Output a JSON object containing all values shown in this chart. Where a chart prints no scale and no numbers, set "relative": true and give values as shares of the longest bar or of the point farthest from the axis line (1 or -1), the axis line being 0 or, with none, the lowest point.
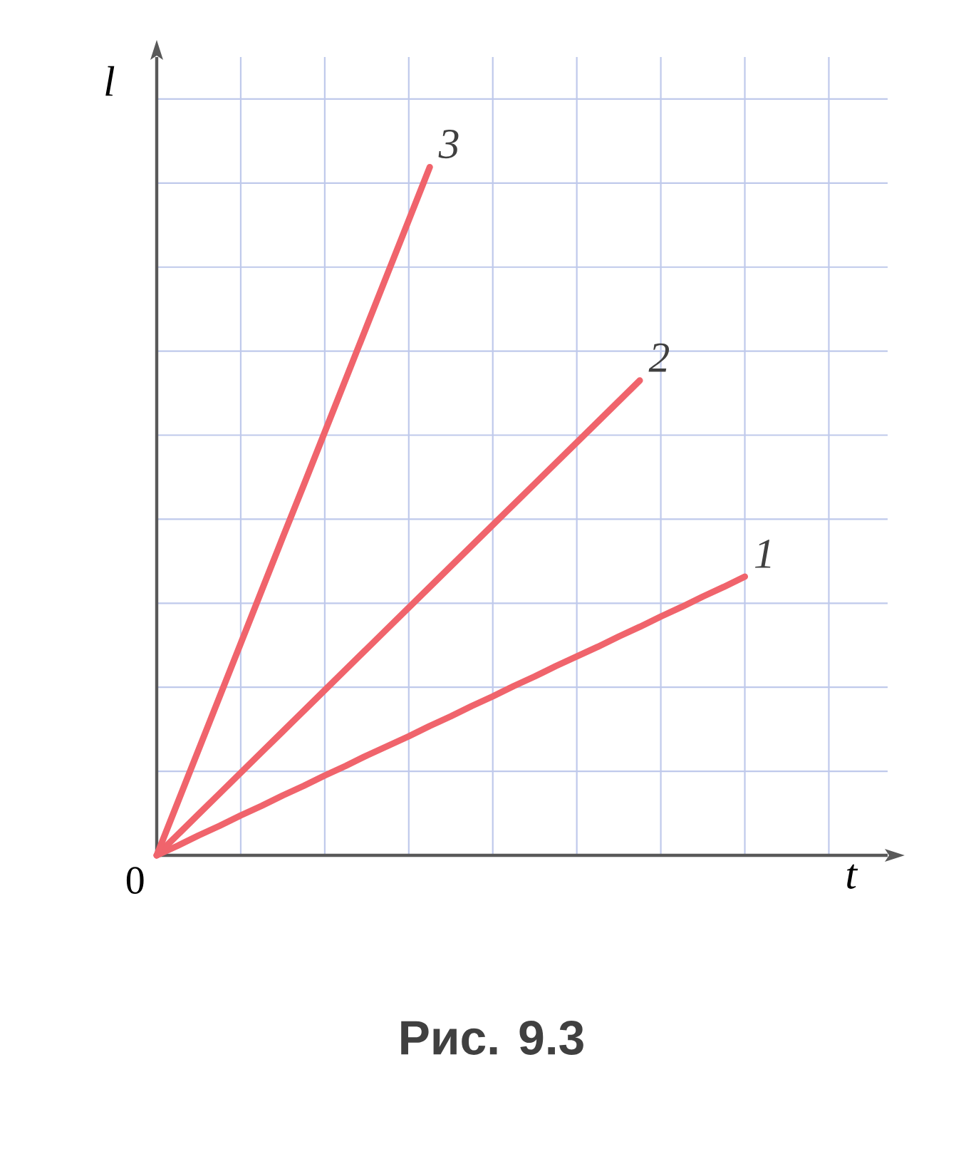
{
  "chart_data": {
    "type": "line",
    "title": "Рис. 9.3",
    "xlabel": "t",
    "ylabel": "l",
    "relative": true,
    "grid": true,
    "annotations": [
      "0"
    ],
    "categories": [
      null,
      null,
      null,
      null,
      null,
      null,
      null,
      null,
      null,
      null,
      null,
      null,
      null,
      null,
      null,
      null,
      null,
      null,
      null,
      null,
      null,
      null,
      null,
      null,
      null,
      null,
      null,
      null,
      null,
      null,
      null,
      null,
      null,
      null,
      null
    ],
    "series": [
      {
        "name": "1",
        "color": "#f0646c",
        "values": [
          0,
          0.014,
          0.029,
          0.043,
          0.058,
          0.072,
          0.087,
          0.101,
          0.116,
          0.13,
          0.145,
          0.159,
          0.173,
          0.188,
          0.202,
          0.217,
          0.231,
          0.246,
          0.26,
          0.275,
          0.289,
          0.303,
          0.318,
          0.332,
          0.347,
          0.361,
          0.376,
          0.39,
          0.405,
          null,
          null,
          null,
          null,
          null,
          null
        ]
      },
      {
        "name": "2",
        "color": "#f0646c",
        "values": [
          0,
          0.03,
          0.06,
          0.09,
          0.12,
          0.15,
          0.18,
          0.21,
          0.24,
          0.27,
          0.3,
          0.33,
          0.36,
          0.39,
          0.42,
          0.45,
          0.48,
          0.51,
          0.54,
          0.57,
          0.6,
          0.63,
          0.66,
          0.69,
          null,
          null,
          null,
          null,
          null,
          null,
          null,
          null,
          null,
          null,
          null
        ]
      },
      {
        "name": "3",
        "color": "#f0646c",
        "values": [
          0,
          0.077,
          0.154,
          0.231,
          0.308,
          0.385,
          0.462,
          0.538,
          0.615,
          0.692,
          0.769,
          0.846,
          0.923,
          1,
          null,
          null,
          null,
          null,
          null,
          null,
          null,
          null,
          null,
          null,
          null,
          null,
          null,
          null,
          null,
          null,
          null,
          null,
          null,
          null,
          null
        ]
      }
    ]
  }
}
